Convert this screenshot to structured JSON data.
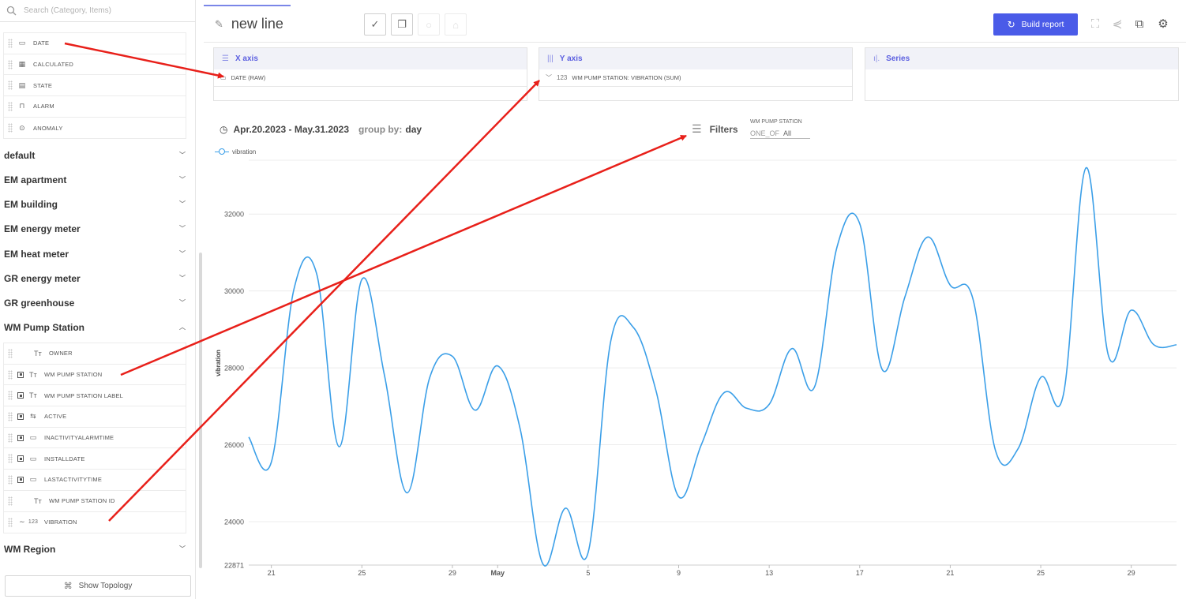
{
  "search": {
    "placeholder": "Search (Category, Items)"
  },
  "builtin_fields": [
    {
      "label": "DATE",
      "icon": "calendar-icon"
    },
    {
      "label": "CALCULATED",
      "icon": "calculator-icon"
    },
    {
      "label": "STATE",
      "icon": "state-icon"
    },
    {
      "label": "ALARM",
      "icon": "alarm-icon"
    },
    {
      "label": "ANOMALY",
      "icon": "anomaly-icon"
    }
  ],
  "groups": [
    {
      "label": "default"
    },
    {
      "label": "EM apartment"
    },
    {
      "label": "EM building"
    },
    {
      "label": "EM energy meter"
    },
    {
      "label": "EM heat meter"
    },
    {
      "label": "GR energy meter"
    },
    {
      "label": "GR greenhouse"
    },
    {
      "label": "WM Pump Station"
    }
  ],
  "pump_fields": [
    {
      "label": "OWNER",
      "icon": "text-icon"
    },
    {
      "label": "WM PUMP STATION",
      "icon": "text-icon"
    },
    {
      "label": "WM PUMP STATION LABEL",
      "icon": "text-icon"
    },
    {
      "label": "ACTIVE",
      "icon": "toggle-icon"
    },
    {
      "label": "INACTIVITYALARMTIME",
      "icon": "calendar-icon"
    },
    {
      "label": "INSTALLDATE",
      "icon": "calendar-icon"
    },
    {
      "label": "LASTACTIVITYTIME",
      "icon": "calendar-icon"
    },
    {
      "label": "WM PUMP STATION ID",
      "icon": "text-icon"
    },
    {
      "label": "VIBRATION",
      "icon": "numeric-icon"
    }
  ],
  "region_group": "WM Region",
  "topology_button": "Show Topology",
  "header": {
    "title": "new line",
    "build_report": "Build report"
  },
  "panels": {
    "x_axis": {
      "title": "X axis",
      "item": "DATE (RAW)"
    },
    "y_axis": {
      "title": "Y axis",
      "item": "WM PUMP STATION: VIBRATION (SUM)",
      "item_prefix": "123"
    },
    "series": {
      "title": "Series"
    }
  },
  "range": {
    "text": "Apr.20.2023 - May.31.2023",
    "group_by_label": "group by:",
    "group_by_value": "day"
  },
  "filters": {
    "label": "Filters",
    "field": "WM PUMP STATION",
    "operator": "ONE_OF",
    "value": "All"
  },
  "colors": {
    "accent": "#4a5be8",
    "line": "#3b9fe8",
    "annotation": "#e8201a"
  },
  "chart_data": {
    "type": "line",
    "ylabel": "vibration",
    "ylim": [
      22871,
      33400
    ],
    "yticks": [
      22871,
      24000,
      26000,
      28000,
      30000,
      32000
    ],
    "xticks": [
      {
        "label": "21",
        "d": 21
      },
      {
        "label": "25",
        "d": 25
      },
      {
        "label": "29",
        "d": 29
      },
      {
        "label": "May",
        "d": 31
      },
      {
        "label": "5",
        "d": 35
      },
      {
        "label": "9",
        "d": 39
      },
      {
        "label": "13",
        "d": 43
      },
      {
        "label": "17",
        "d": 47
      },
      {
        "label": "21",
        "d": 51
      },
      {
        "label": "25",
        "d": 55
      },
      {
        "label": "29",
        "d": 59
      }
    ],
    "series": [
      {
        "name": "vibration",
        "points": [
          [
            "Apr.20",
            26200
          ],
          [
            "Apr.21",
            25550
          ],
          [
            "Apr.22",
            30050
          ],
          [
            "Apr.23",
            30450
          ],
          [
            "Apr.24",
            25950
          ],
          [
            "Apr.25",
            30300
          ],
          [
            "Apr.26",
            27800
          ],
          [
            "Apr.27",
            24750
          ],
          [
            "Apr.28",
            27750
          ],
          [
            "Apr.29",
            28300
          ],
          [
            "Apr.30",
            26900
          ],
          [
            "May.01",
            28050
          ],
          [
            "May.02",
            26400
          ],
          [
            "May.03",
            22900
          ],
          [
            "May.04",
            24350
          ],
          [
            "May.05",
            23200
          ],
          [
            "May.06",
            28700
          ],
          [
            "May.07",
            29050
          ],
          [
            "May.08",
            27400
          ],
          [
            "May.09",
            24650
          ],
          [
            "May.10",
            26000
          ],
          [
            "May.11",
            27350
          ],
          [
            "May.12",
            26950
          ],
          [
            "May.13",
            27050
          ],
          [
            "May.14",
            28500
          ],
          [
            "May.15",
            27500
          ],
          [
            "May.16",
            31150
          ],
          [
            "May.17",
            31750
          ],
          [
            "May.18",
            27950
          ],
          [
            "May.19",
            29850
          ],
          [
            "May.20",
            31400
          ],
          [
            "May.21",
            30150
          ],
          [
            "May.22",
            29800
          ],
          [
            "May.23",
            25850
          ],
          [
            "May.24",
            25900
          ],
          [
            "May.25",
            27750
          ],
          [
            "May.26",
            27300
          ],
          [
            "May.27",
            33200
          ],
          [
            "May.28",
            28300
          ],
          [
            "May.29",
            29500
          ],
          [
            "May.30",
            28600
          ],
          [
            "May.31",
            28600
          ]
        ]
      }
    ]
  }
}
